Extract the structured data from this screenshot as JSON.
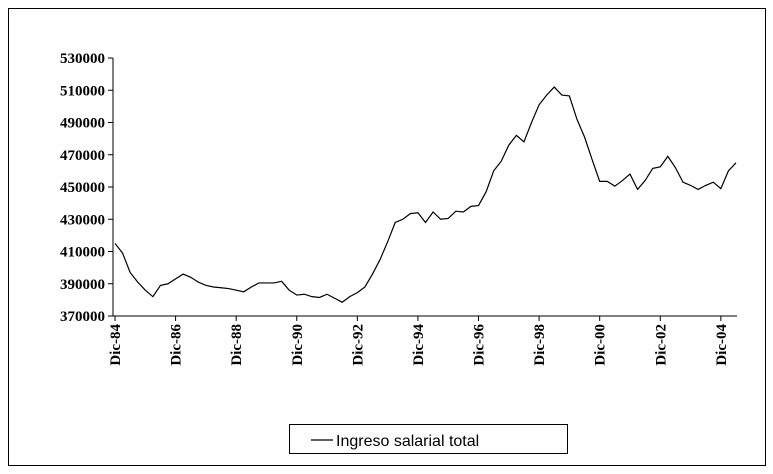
{
  "chart_data": {
    "type": "line",
    "categories": [
      "Dic-84",
      null,
      null,
      null,
      null,
      null,
      null,
      null,
      "Dic-86",
      null,
      null,
      null,
      null,
      null,
      null,
      null,
      "Dic-88",
      null,
      null,
      null,
      null,
      null,
      null,
      null,
      "Dic-90",
      null,
      null,
      null,
      null,
      null,
      null,
      null,
      "Dic-92",
      null,
      null,
      null,
      null,
      null,
      null,
      null,
      "Dic-94",
      null,
      null,
      null,
      null,
      null,
      null,
      null,
      "Dic-96",
      null,
      null,
      null,
      null,
      null,
      null,
      null,
      "Dic-98",
      null,
      null,
      null,
      null,
      null,
      null,
      null,
      "Dic-00",
      null,
      null,
      null,
      null,
      null,
      null,
      null,
      "Dic-02",
      null,
      null,
      null,
      null,
      null,
      null,
      null,
      "Dic-04",
      null,
      null
    ],
    "series": [
      {
        "name": "Ingreso salarial total",
        "color": "#000000",
        "values": [
          415000,
          409000,
          397000,
          391000,
          386000,
          382000,
          389000,
          390000,
          393000,
          396000,
          394000,
          391000,
          389000,
          388000,
          387500,
          387000,
          386000,
          385000,
          388000,
          390500,
          390500,
          390500,
          391500,
          386000,
          383000,
          383500,
          382000,
          381500,
          383500,
          381000,
          378500,
          382000,
          384500,
          388000,
          396000,
          405000,
          416000,
          428000,
          430000,
          433500,
          434000,
          428000,
          434500,
          430000,
          430500,
          435000,
          434500,
          438000,
          438500,
          447000,
          460000,
          466000,
          476000,
          482000,
          478000,
          490000,
          501000,
          507000,
          512000,
          507000,
          506500,
          492000,
          481000,
          467000,
          453500,
          453500,
          450500,
          454000,
          458000,
          448500,
          454000,
          461500,
          462500,
          469000,
          462000,
          453000,
          451000,
          448500,
          451000,
          453000,
          449000,
          460000,
          465000
        ]
      }
    ],
    "ylim": [
      370000,
      530000
    ],
    "yticks": [
      370000,
      390000,
      410000,
      430000,
      450000,
      470000,
      490000,
      510000,
      530000
    ],
    "grid": false,
    "legend": "bottom"
  }
}
